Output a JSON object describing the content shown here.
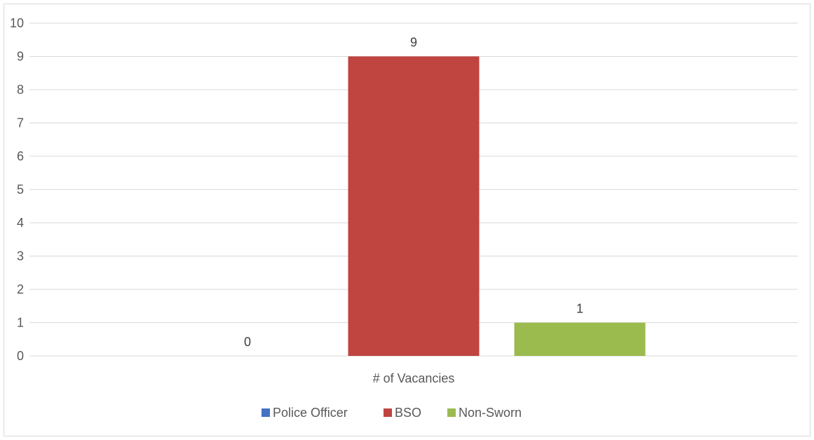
{
  "chart_data": {
    "type": "bar",
    "categories": [
      "# of Vacancies"
    ],
    "series": [
      {
        "name": "Police Officer",
        "values": [
          0
        ],
        "color": "#4472c4"
      },
      {
        "name": "BSO",
        "values": [
          9
        ],
        "color": "#c0443f"
      },
      {
        "name": "Non-Sworn",
        "values": [
          1
        ],
        "color": "#9bbb4f"
      }
    ],
    "ylim": [
      0,
      10
    ],
    "yticks": [
      "0",
      "1",
      "2",
      "3",
      "4",
      "5",
      "6",
      "7",
      "8",
      "9",
      "10"
    ],
    "grid": true,
    "legend_position": "bottom",
    "data_labels": [
      "0",
      "9",
      "1"
    ]
  }
}
